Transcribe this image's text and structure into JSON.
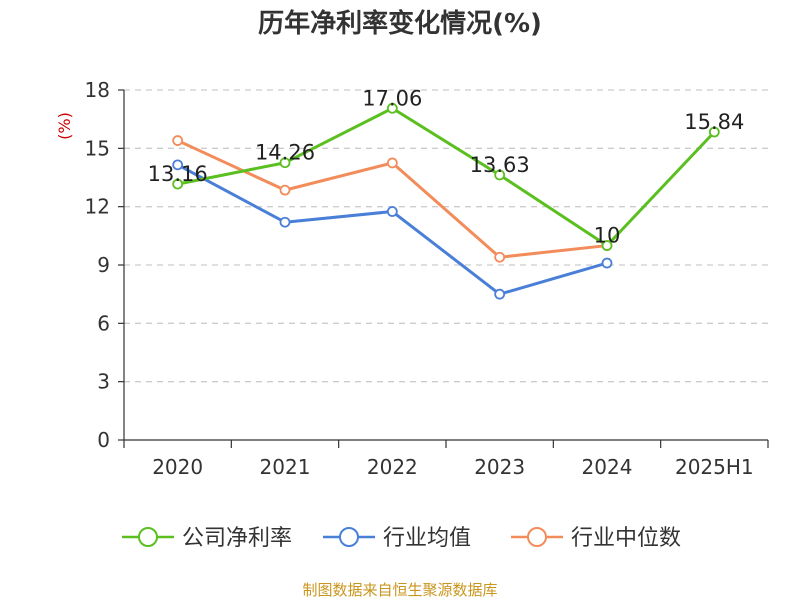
{
  "chart_data": {
    "type": "line",
    "title": "历年净利率变化情况(%)",
    "ylabel": "(%)",
    "xlabel": "",
    "categories": [
      "2020",
      "2021",
      "2022",
      "2023",
      "2024",
      "2025H1"
    ],
    "ylim": [
      0,
      18
    ],
    "yticks": [
      0,
      3,
      6,
      9,
      12,
      15,
      18
    ],
    "grid": "horizontal dashed",
    "legend_position": "bottom",
    "series": [
      {
        "name": "公司净利率",
        "color": "#5bbf20",
        "values": [
          13.16,
          14.26,
          17.06,
          13.63,
          10,
          15.84
        ],
        "labels": [
          "13.16",
          "14.26",
          "17.06",
          "13.63",
          "10",
          "15.84"
        ]
      },
      {
        "name": "行业均值",
        "color": "#4a7fd8",
        "values": [
          14.15,
          11.2,
          11.75,
          7.5,
          9.1,
          null
        ]
      },
      {
        "name": "行业中位数",
        "color": "#f28c5a",
        "values": [
          15.4,
          12.85,
          14.25,
          9.4,
          10.0,
          null
        ]
      }
    ]
  },
  "footer": {
    "source": "制图数据来自恒生聚源数据库"
  }
}
